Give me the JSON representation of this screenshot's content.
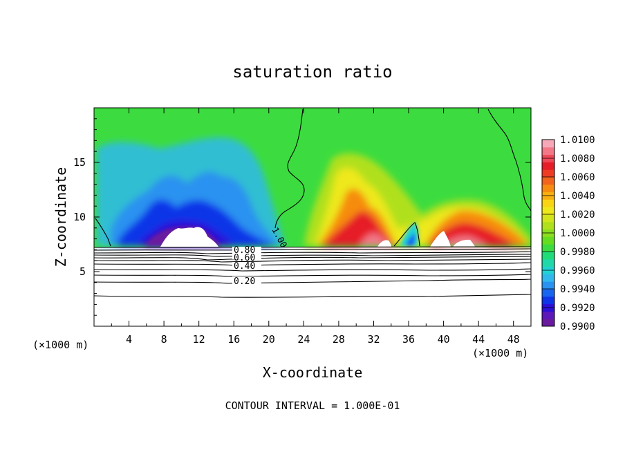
{
  "chart_data": {
    "type": "heatmap",
    "title": "saturation ratio",
    "xlabel": "X-coordinate",
    "ylabel": "Z-coordinate",
    "x_units": "(×1000 m)",
    "x_units_right": "(×1000 m)",
    "footer": "CONTOUR INTERVAL = 1.000E-01",
    "xlim": [
      0,
      50
    ],
    "ylim": [
      0,
      20
    ],
    "x_ticks": [
      4,
      8,
      12,
      16,
      20,
      24,
      28,
      32,
      36,
      40,
      44,
      48
    ],
    "y_ticks": [
      5,
      10,
      15
    ],
    "colorbar": {
      "min": 0.99,
      "max": 1.01,
      "labels": [
        "1.0100",
        "1.0080",
        "1.0060",
        "1.0040",
        "1.0020",
        "1.0000",
        "0.9980",
        "0.9960",
        "0.9940",
        "0.9920",
        "0.9900"
      ],
      "colors": [
        "#6a1a9e",
        "#5c18b8",
        "#2c10d8",
        "#1034e8",
        "#1866f0",
        "#2a92f0",
        "#30b8ec",
        "#20d2d4",
        "#20d8a8",
        "#20dc78",
        "#3cdc40",
        "#64dc20",
        "#8ade1e",
        "#b0e01c",
        "#d2e41a",
        "#eee81a",
        "#f8d414",
        "#f8b010",
        "#f68c10",
        "#f2641c",
        "#ee3c24",
        "#e61c28",
        "#ee4858",
        "#f27888",
        "#f6a8b8"
      ]
    },
    "contour_labels": [
      "1.00",
      "0.80",
      "0.60",
      "0.40",
      "0.20"
    ]
  }
}
